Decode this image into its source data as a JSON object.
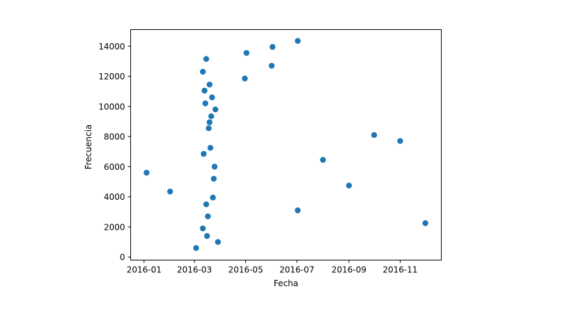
{
  "chart_data": {
    "type": "scatter",
    "title": "",
    "xlabel": "Fecha",
    "ylabel": "Frecuencia",
    "x_is_date": true,
    "xlim": [
      "2015-12-16",
      "2016-12-20"
    ],
    "ylim": [
      -200,
      15100
    ],
    "grid": false,
    "marker_color": "#1f77b4",
    "x_ticks": [
      {
        "date": "2016-01-01",
        "label": "2016-01"
      },
      {
        "date": "2016-03-01",
        "label": "2016-03"
      },
      {
        "date": "2016-05-01",
        "label": "2016-05"
      },
      {
        "date": "2016-07-01",
        "label": "2016-07"
      },
      {
        "date": "2016-09-01",
        "label": "2016-09"
      },
      {
        "date": "2016-11-01",
        "label": "2016-11"
      }
    ],
    "y_ticks": [
      0,
      2000,
      4000,
      6000,
      8000,
      10000,
      12000,
      14000
    ],
    "points": [
      {
        "x": "2016-01-04",
        "y": 5600
      },
      {
        "x": "2016-02-01",
        "y": 4350
      },
      {
        "x": "2016-03-03",
        "y": 600
      },
      {
        "x": "2016-03-11",
        "y": 1900
      },
      {
        "x": "2016-03-11",
        "y": 12300
      },
      {
        "x": "2016-03-12",
        "y": 6850
      },
      {
        "x": "2016-03-13",
        "y": 11050
      },
      {
        "x": "2016-03-14",
        "y": 10200
      },
      {
        "x": "2016-03-15",
        "y": 13150
      },
      {
        "x": "2016-03-15",
        "y": 3500
      },
      {
        "x": "2016-03-16",
        "y": 1400
      },
      {
        "x": "2016-03-17",
        "y": 2700
      },
      {
        "x": "2016-03-18",
        "y": 8550
      },
      {
        "x": "2016-03-19",
        "y": 8950
      },
      {
        "x": "2016-03-19",
        "y": 11450
      },
      {
        "x": "2016-03-20",
        "y": 7250
      },
      {
        "x": "2016-03-21",
        "y": 9350
      },
      {
        "x": "2016-03-22",
        "y": 10600
      },
      {
        "x": "2016-03-23",
        "y": 3950
      },
      {
        "x": "2016-03-24",
        "y": 5200
      },
      {
        "x": "2016-03-25",
        "y": 6000
      },
      {
        "x": "2016-03-26",
        "y": 9800
      },
      {
        "x": "2016-03-29",
        "y": 1000
      },
      {
        "x": "2016-04-30",
        "y": 11850
      },
      {
        "x": "2016-05-02",
        "y": 13550
      },
      {
        "x": "2016-06-01",
        "y": 12700
      },
      {
        "x": "2016-06-02",
        "y": 13950
      },
      {
        "x": "2016-07-02",
        "y": 3100
      },
      {
        "x": "2016-07-02",
        "y": 14350
      },
      {
        "x": "2016-08-01",
        "y": 6450
      },
      {
        "x": "2016-09-01",
        "y": 4750
      },
      {
        "x": "2016-10-01",
        "y": 8100
      },
      {
        "x": "2016-11-01",
        "y": 7700
      },
      {
        "x": "2016-12-01",
        "y": 2250
      }
    ]
  }
}
